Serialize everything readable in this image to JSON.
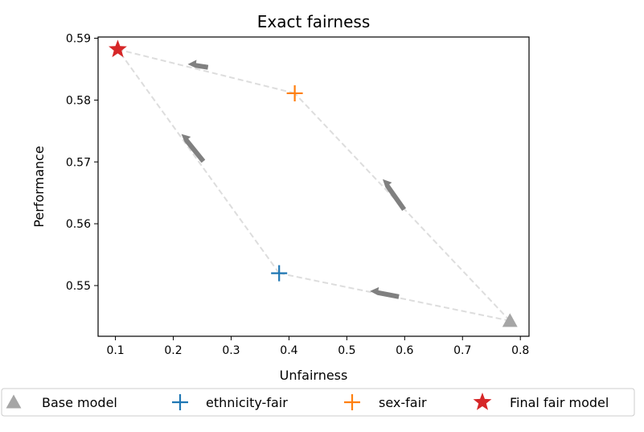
{
  "chart_data": {
    "type": "scatter",
    "title": "Exact fairness",
    "xlabel": "Unfairness",
    "ylabel": "Performance",
    "xlim": [
      0.07,
      0.815
    ],
    "ylim": [
      0.5418,
      0.5902
    ],
    "xticks": [
      0.1,
      0.2,
      0.3,
      0.4,
      0.5,
      0.6,
      0.7,
      0.8
    ],
    "xtick_labels": [
      "0.1",
      "0.2",
      "0.3",
      "0.4",
      "0.5",
      "0.6",
      "0.7",
      "0.8"
    ],
    "yticks": [
      0.55,
      0.56,
      0.57,
      0.58,
      0.59
    ],
    "ytick_labels": [
      "0.55",
      "0.56",
      "0.57",
      "0.58",
      "0.59"
    ],
    "grid": false,
    "legend_position": "bottom",
    "points": [
      {
        "name": "Base model",
        "x": 0.782,
        "y": 0.5443,
        "marker": "triangle",
        "color": "#a6a6a6"
      },
      {
        "name": "ethnicity-fair",
        "x": 0.383,
        "y": 0.552,
        "marker": "plus",
        "color": "#1f77b4"
      },
      {
        "name": "sex-fair",
        "x": 0.41,
        "y": 0.5811,
        "marker": "plus",
        "color": "#ff7f0e"
      },
      {
        "name": "Final fair model",
        "x": 0.104,
        "y": 0.5882,
        "marker": "star",
        "color": "#d62728"
      }
    ],
    "paths": [
      {
        "from": [
          0.782,
          0.5443
        ],
        "to": [
          0.383,
          0.552
        ],
        "color": "#dddddd"
      },
      {
        "from": [
          0.383,
          0.552
        ],
        "to": [
          0.104,
          0.5882
        ],
        "color": "#dddddd"
      },
      {
        "from": [
          0.782,
          0.5443
        ],
        "to": [
          0.41,
          0.5811
        ],
        "color": "#dddddd"
      },
      {
        "from": [
          0.41,
          0.5811
        ],
        "to": [
          0.104,
          0.5882
        ],
        "color": "#dddddd"
      }
    ],
    "arrow_color": "#808080",
    "arrows": [
      {
        "tail": [
          0.59,
          0.5482
        ],
        "head": [
          0.54,
          0.5491
        ]
      },
      {
        "tail": [
          0.26,
          0.5853
        ],
        "head": [
          0.225,
          0.5858
        ]
      },
      {
        "tail": [
          0.252,
          0.5701
        ],
        "head": [
          0.214,
          0.5745
        ]
      },
      {
        "tail": [
          0.599,
          0.5623
        ],
        "head": [
          0.562,
          0.5672
        ]
      }
    ],
    "legend": [
      {
        "label": "Base model",
        "marker": "triangle",
        "color": "#a6a6a6"
      },
      {
        "label": "ethnicity-fair",
        "marker": "plus",
        "color": "#1f77b4"
      },
      {
        "label": "sex-fair",
        "marker": "plus",
        "color": "#ff7f0e"
      },
      {
        "label": "Final fair model",
        "marker": "star",
        "color": "#d62728"
      }
    ]
  }
}
